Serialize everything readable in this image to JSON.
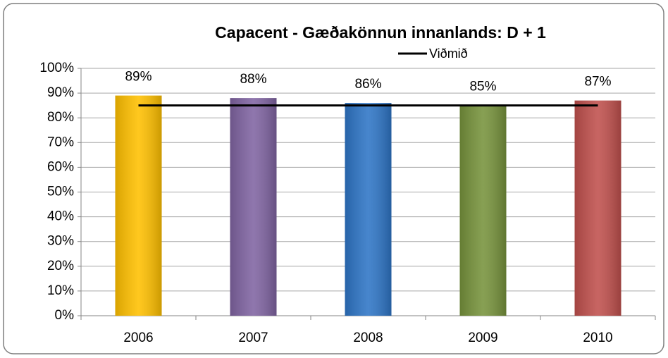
{
  "chart_data": {
    "type": "bar",
    "title": "Capacent  - Gæðakönnun innanlands:  D + 1",
    "categories": [
      "2006",
      "2007",
      "2008",
      "2009",
      "2010"
    ],
    "values": [
      89,
      88,
      86,
      85,
      87
    ],
    "value_labels": [
      "89%",
      "88%",
      "86%",
      "85%",
      "87%"
    ],
    "colors": [
      "#ffc000",
      "#8064a2",
      "#2e75c6",
      "#77933c",
      "#c0504d"
    ],
    "series": [
      {
        "name": "Viðmið",
        "type": "line",
        "color": "#000000",
        "values": [
          85,
          85,
          85,
          85,
          85
        ]
      }
    ],
    "ylim": [
      0,
      100
    ],
    "yticks": [
      {
        "value": 0,
        "label": "0%"
      },
      {
        "value": 10,
        "label": "10%"
      },
      {
        "value": 20,
        "label": "20%"
      },
      {
        "value": 30,
        "label": "30%"
      },
      {
        "value": 40,
        "label": "40%"
      },
      {
        "value": 50,
        "label": "50%"
      },
      {
        "value": 60,
        "label": "60%"
      },
      {
        "value": 70,
        "label": "70%"
      },
      {
        "value": 80,
        "label": "80%"
      },
      {
        "value": 90,
        "label": "90%"
      },
      {
        "value": 100,
        "label": "100%"
      }
    ],
    "grid": true,
    "legend": "top"
  }
}
